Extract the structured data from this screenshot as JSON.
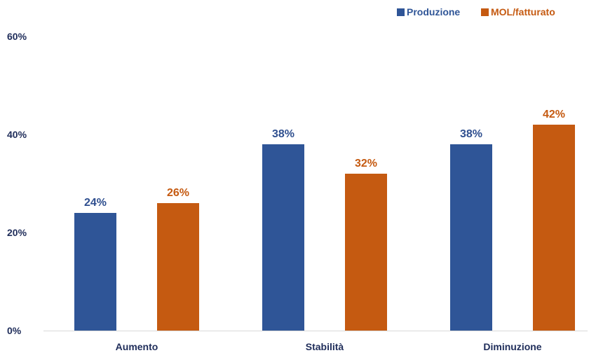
{
  "colors": {
    "production": "#2f5597",
    "mol": "#c55a11",
    "axis_text": "#1f2d5a",
    "axis_line": "#d9d9d9"
  },
  "chart_data": {
    "type": "bar",
    "categories": [
      "Aumento",
      "Stabilità",
      "Diminuzione"
    ],
    "series": [
      {
        "name": "Produzione",
        "values": [
          24,
          38,
          38
        ],
        "labels": [
          "24%",
          "38%",
          "38%"
        ]
      },
      {
        "name": "MOL/fatturato",
        "values": [
          26,
          32,
          42
        ],
        "labels": [
          "26%",
          "32%",
          "42%"
        ]
      }
    ],
    "yticks": [
      "0%",
      "20%",
      "40%",
      "60%"
    ],
    "ytick_values": [
      0,
      20,
      40,
      60
    ],
    "ylim": [
      0,
      60
    ],
    "grid": false,
    "legend": "top-right"
  }
}
